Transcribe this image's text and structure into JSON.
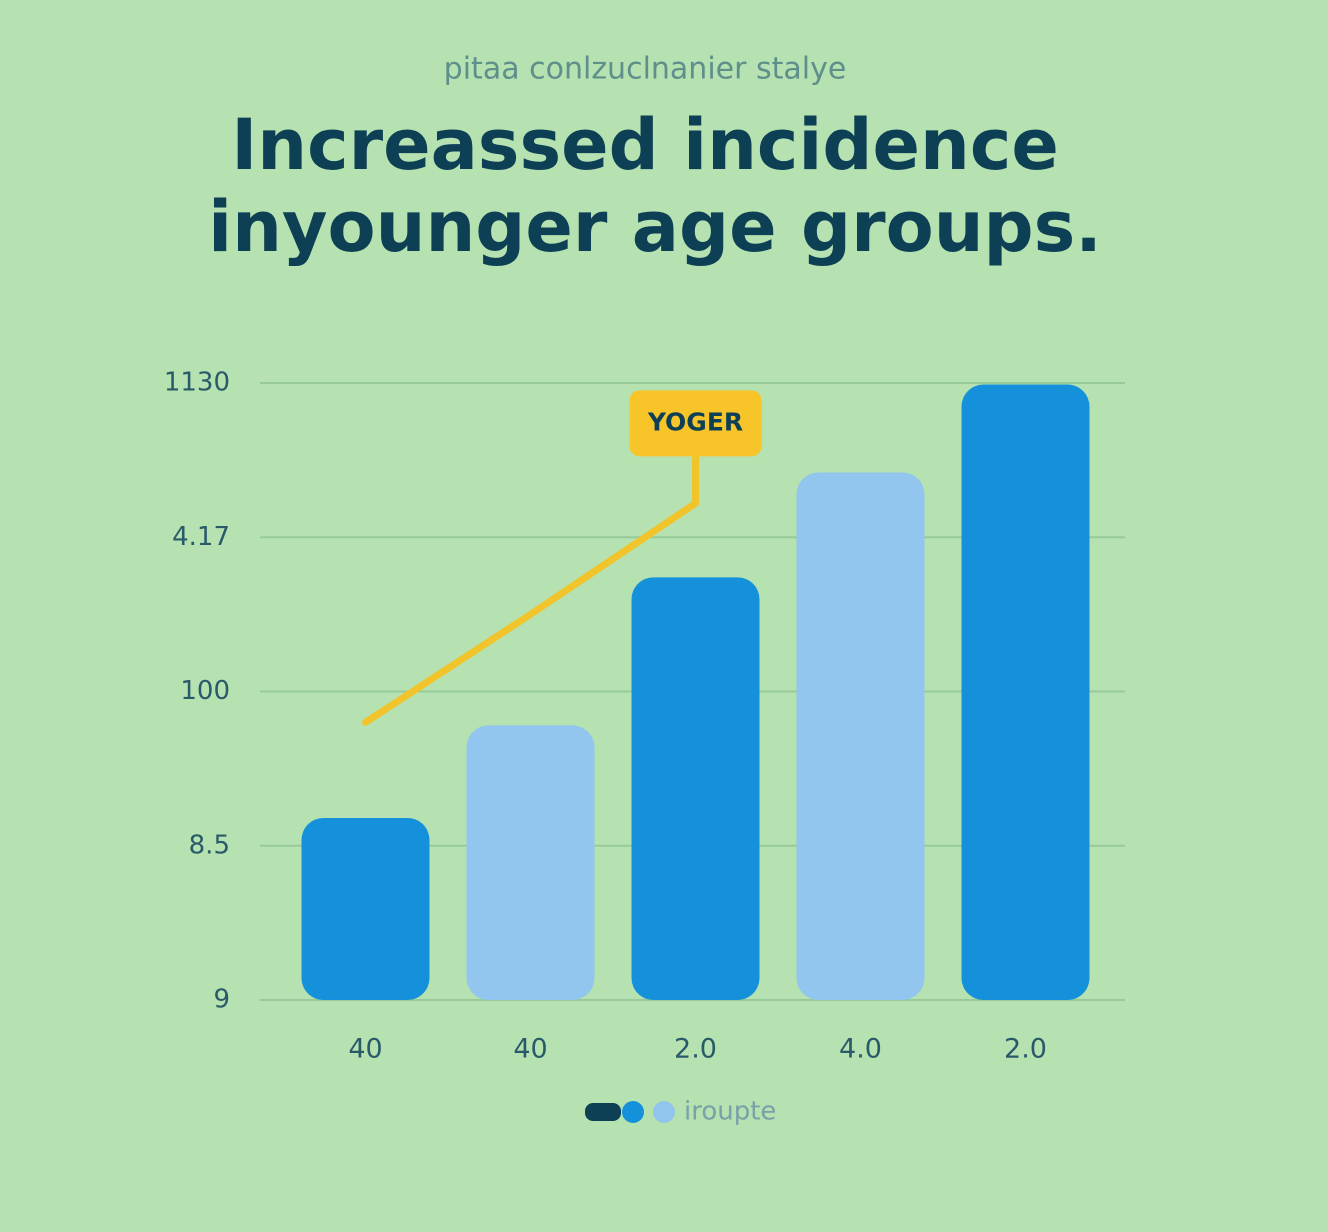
{
  "chart_data": {
    "type": "bar",
    "subtitle": "pitaa conlzuclnanier stalye",
    "title": [
      "Increassed incidence",
      "inyounger age groups."
    ],
    "categories": [
      "40",
      "40",
      "2.0",
      "4.0",
      "2.0"
    ],
    "values": [
      1.18,
      1.78,
      2.74,
      3.42,
      3.99
    ],
    "colors": [
      "#1591dc",
      "#92c6ee",
      "#1591dc",
      "#92c6ee",
      "#1591dc"
    ],
    "line": {
      "color": "#f2c42c",
      "values": [
        1.8,
        2.5,
        3.22,
        null,
        null
      ],
      "annotation": "YOGER"
    },
    "ylim": [
      0,
      4
    ],
    "yticks": [
      {
        "value": 0,
        "label": "9"
      },
      {
        "value": 1,
        "label": "8.5"
      },
      {
        "value": 2,
        "label": "100"
      },
      {
        "value": 3,
        "label": "4.17"
      },
      {
        "value": 4,
        "label": "1130"
      }
    ],
    "grid": true,
    "legend": {
      "label": "iroupte",
      "colors": [
        "#0d3f55",
        "#1591dc",
        "#92c6ee"
      ]
    }
  }
}
